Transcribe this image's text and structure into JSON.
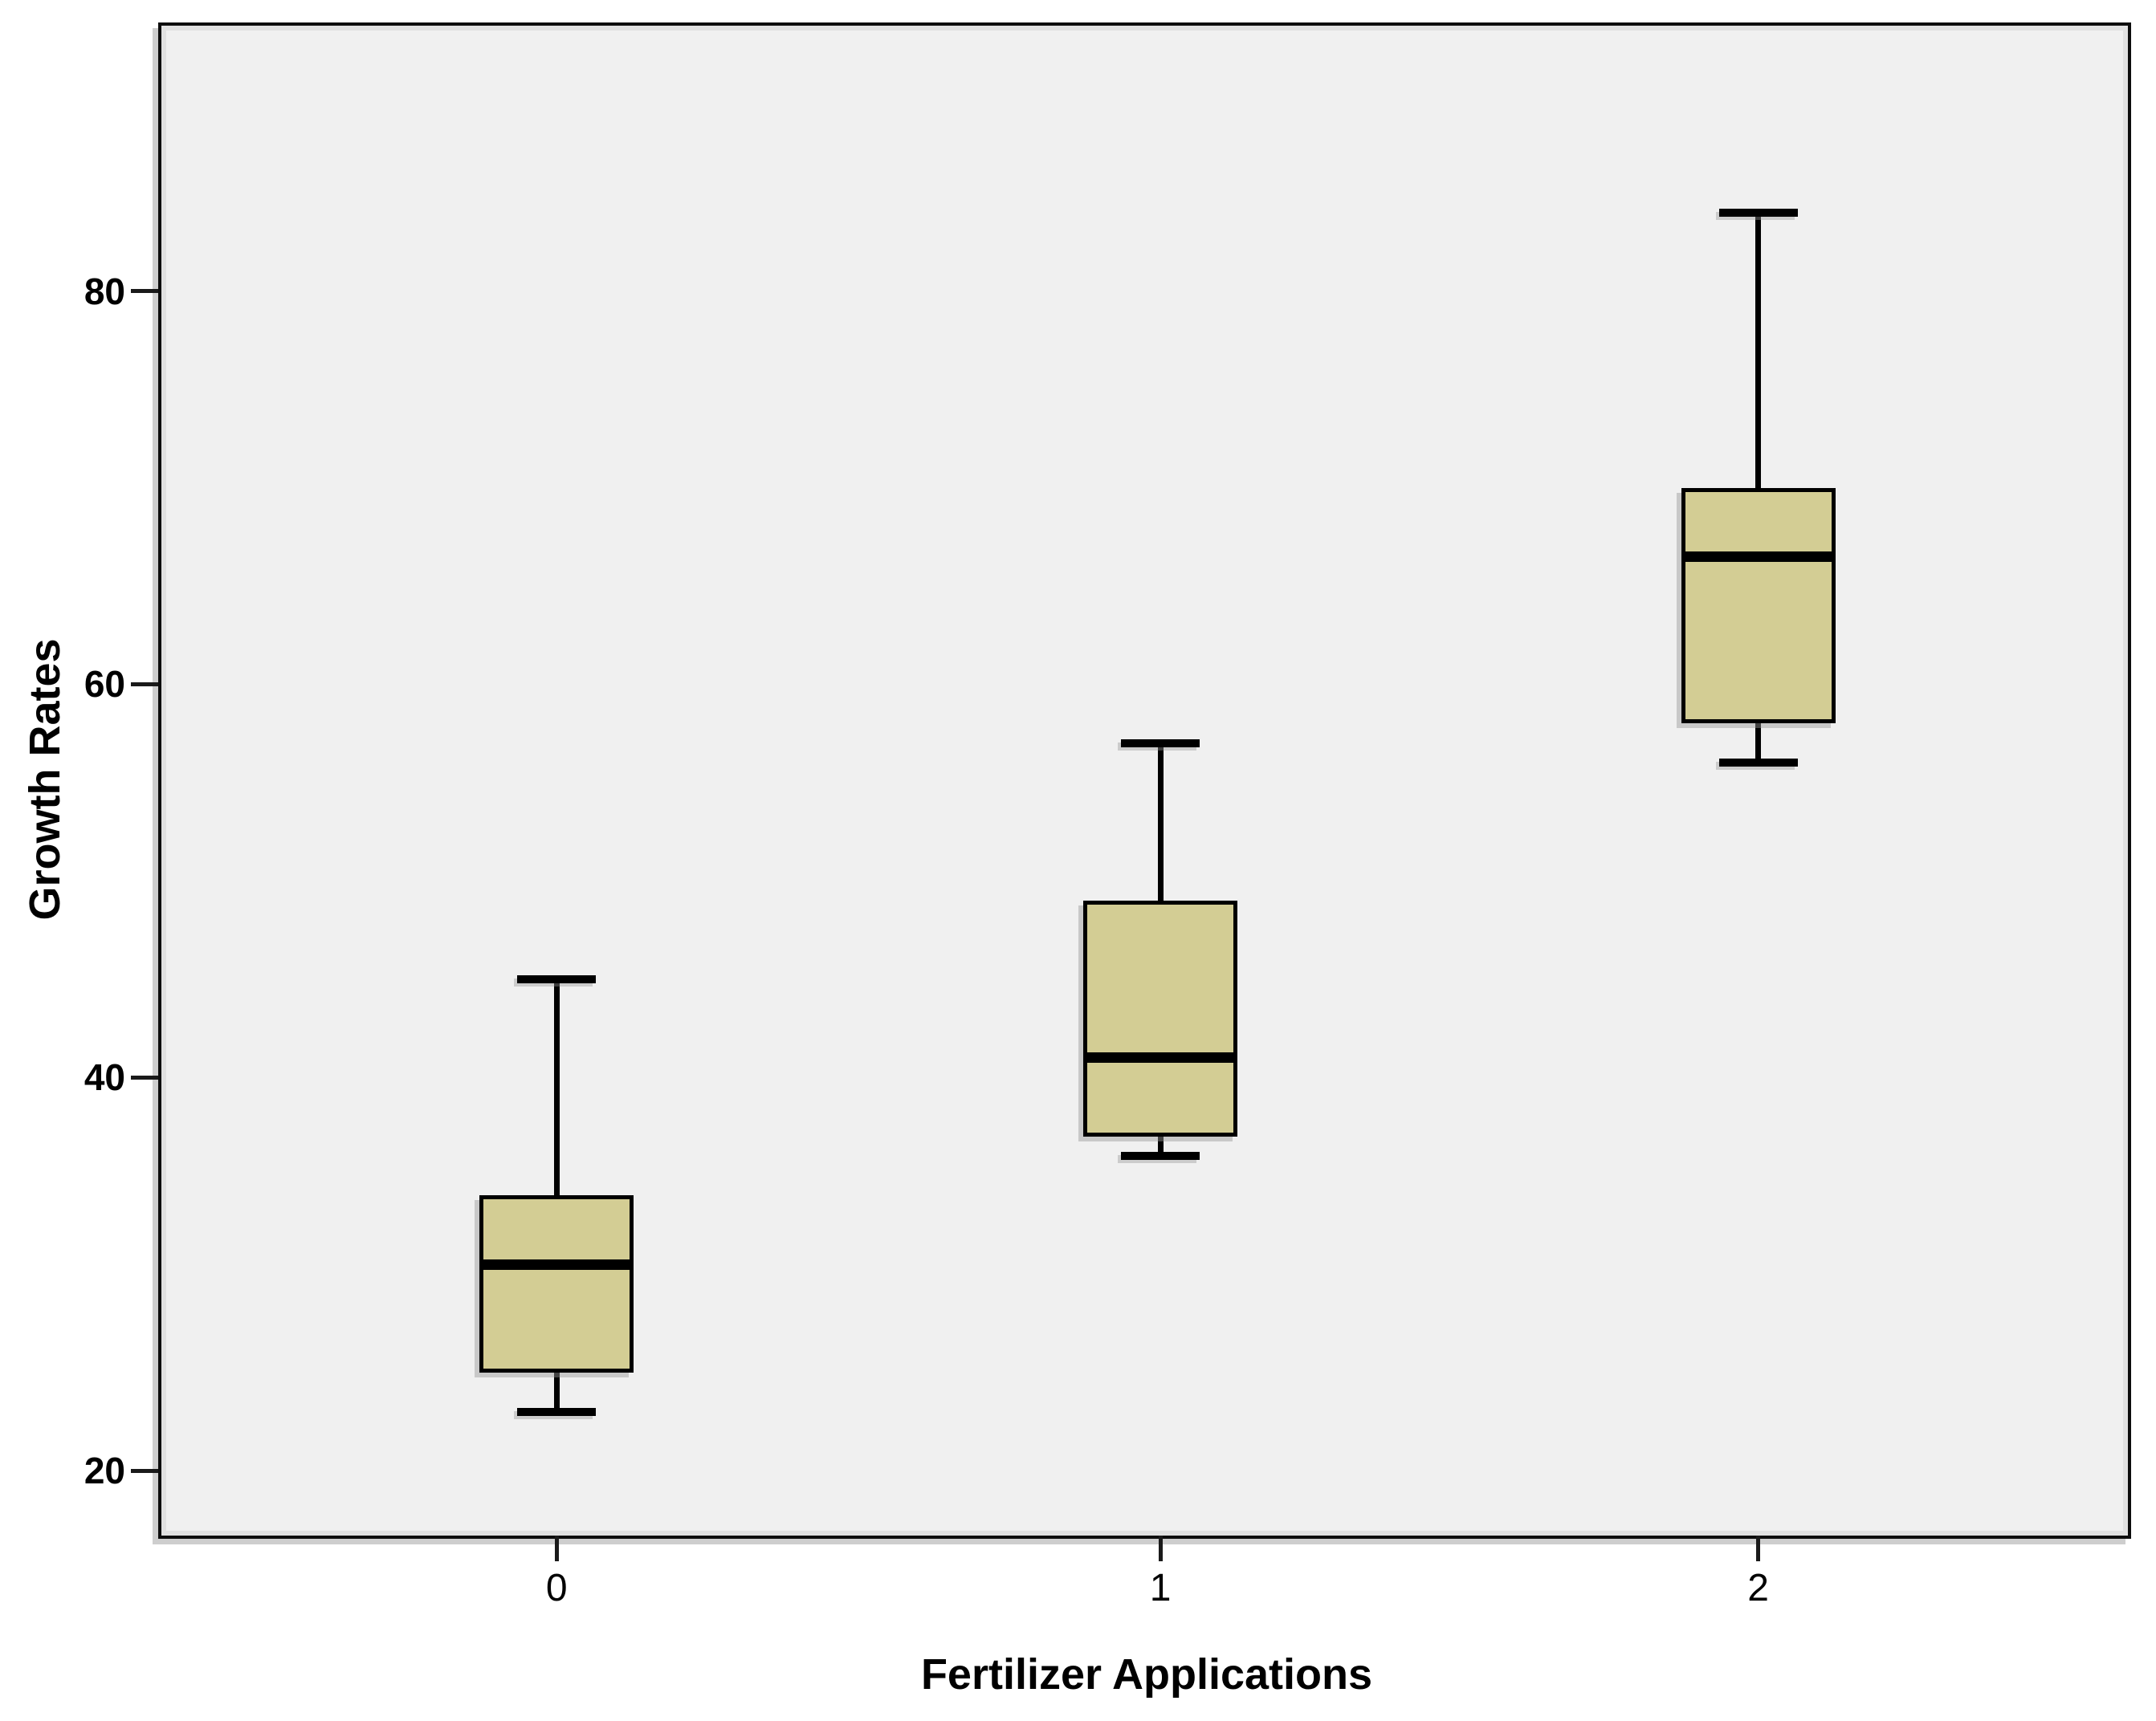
{
  "chart_data": {
    "type": "boxplot",
    "title": "",
    "xlabel": "Fertilizer Applications",
    "ylabel": "Growth Rates",
    "categories": [
      "0",
      "1",
      "2"
    ],
    "y_ticks": [
      20,
      40,
      60,
      80
    ],
    "ylim": [
      16.7,
      93.5
    ],
    "grid": false,
    "legend": "none",
    "boxes": [
      {
        "category": "0",
        "whisker_low": 23,
        "q1": 25,
        "median": 30.5,
        "q3": 34,
        "whisker_high": 45,
        "outliers": []
      },
      {
        "category": "1",
        "whisker_low": 36,
        "q1": 37,
        "median": 41,
        "q3": 49,
        "whisker_high": 57,
        "outliers": []
      },
      {
        "category": "2",
        "whisker_low": 56,
        "q1": 58,
        "median": 66.5,
        "q3": 70,
        "whisker_high": 84,
        "outliers": []
      }
    ],
    "colors": {
      "box_fill": "#D3CD94",
      "box_border": "#000000",
      "median": "#000000",
      "whisker": "#000000",
      "plot_bg": "#F0F0F0",
      "frame": "#0d0d0d",
      "tick": "#1a1a1a",
      "text": "#000000",
      "outer_bg": "#FFFFFF"
    }
  }
}
